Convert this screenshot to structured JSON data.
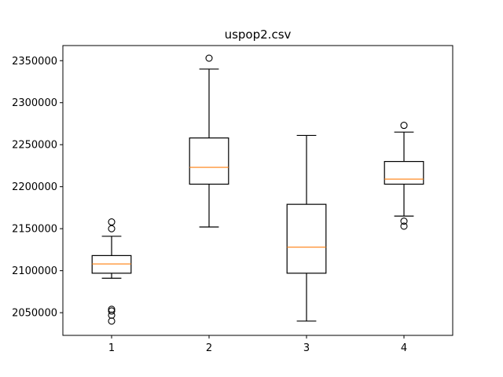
{
  "chart_data": {
    "type": "boxplot",
    "title": "uspop2.csv",
    "xlabel": "",
    "ylabel": "",
    "categories": [
      "1",
      "2",
      "3",
      "4"
    ],
    "ylim": [
      2023000,
      2368000
    ],
    "yticks": [
      2050000,
      2100000,
      2150000,
      2200000,
      2250000,
      2300000,
      2350000
    ],
    "ytick_labels": [
      "2050000",
      "2100000",
      "2150000",
      "2200000",
      "2250000",
      "2300000",
      "2350000"
    ],
    "grid": false,
    "boxes": [
      {
        "label": "1",
        "whisker_low": 2091000,
        "q1": 2097000,
        "median": 2108000,
        "q3": 2118000,
        "whisker_high": 2141000,
        "outliers": [
          2040000,
          2047000,
          2052000,
          2054000,
          2150000,
          2158000
        ]
      },
      {
        "label": "2",
        "whisker_low": 2152000,
        "q1": 2203000,
        "median": 2223000,
        "q3": 2258000,
        "whisker_high": 2340000,
        "outliers": [
          2353000
        ]
      },
      {
        "label": "3",
        "whisker_low": 2040000,
        "q1": 2097000,
        "median": 2128000,
        "q3": 2179000,
        "whisker_high": 2261000,
        "outliers": []
      },
      {
        "label": "4",
        "whisker_low": 2165000,
        "q1": 2203000,
        "median": 2209000,
        "q3": 2230000,
        "whisker_high": 2265000,
        "outliers": [
          2153000,
          2159000,
          2273000
        ]
      }
    ],
    "colors": {
      "box": "#000000",
      "median": "#ff7f0e",
      "axes": "#000000",
      "background": "#ffffff"
    }
  }
}
